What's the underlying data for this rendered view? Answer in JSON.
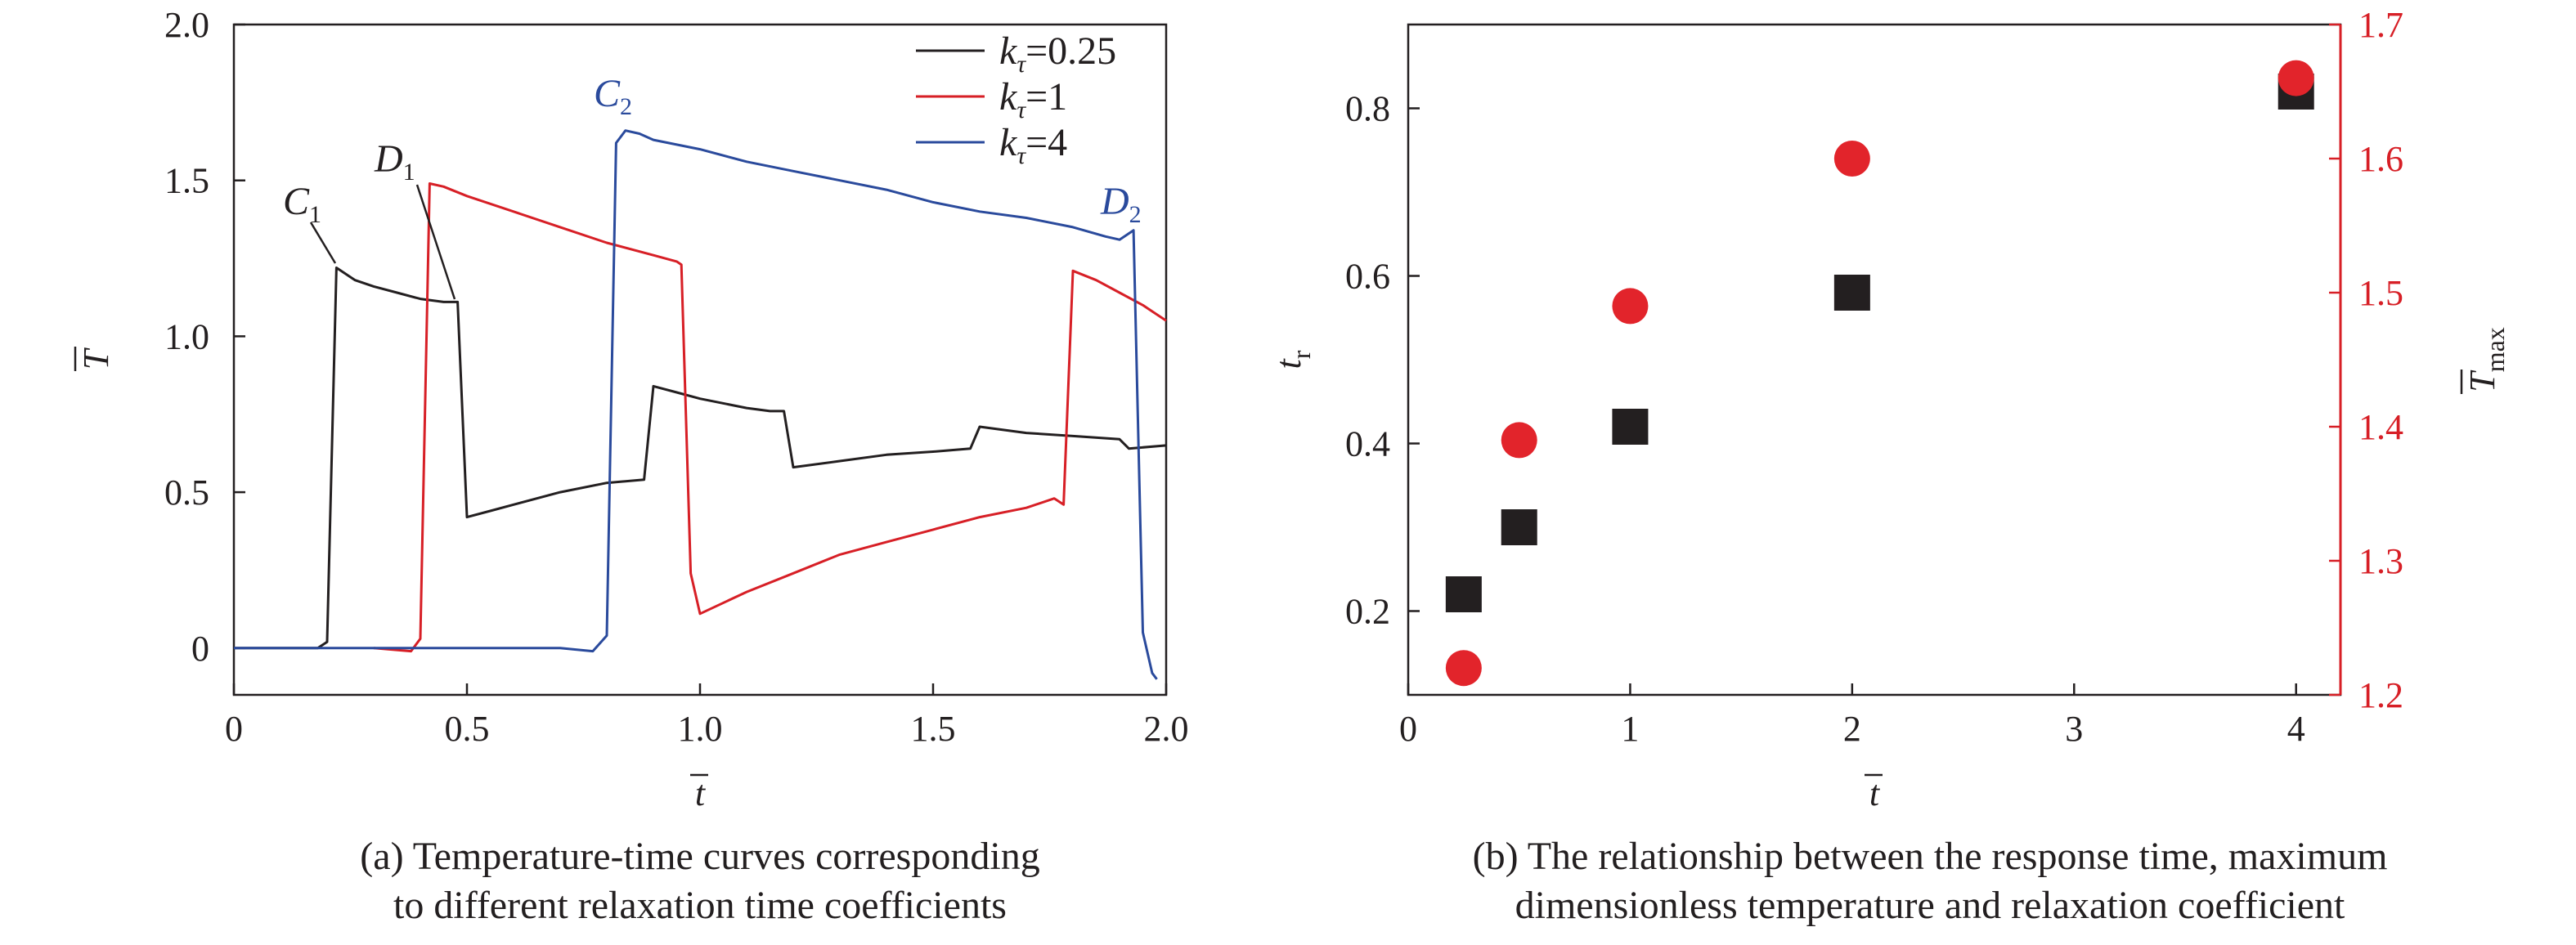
{
  "chart_data": [
    {
      "type": "line",
      "xlabel": "t̄",
      "ylabel": "T̄",
      "xlim": [
        0,
        2.0
      ],
      "ylim": [
        -0.15,
        2.0
      ],
      "xticks": [
        "0",
        "0.5",
        "1.0",
        "1.5",
        "2.0"
      ],
      "yticks": [
        "0",
        "0.5",
        "1.0",
        "1.5",
        "2.0"
      ],
      "legend": {
        "position": "top-right",
        "entries": [
          {
            "k": "k",
            "sub": "τ",
            "value": "=0.25",
            "color": "#231f20"
          },
          {
            "k": "k",
            "sub": "τ",
            "value": "=1",
            "color": "#d71f26"
          },
          {
            "k": "k",
            "sub": "τ",
            "value": "=4",
            "color": "#2a4a9c"
          }
        ]
      },
      "series": [
        {
          "name": "kτ=0.25",
          "color": "#231f20",
          "points": [
            [
              0,
              0
            ],
            [
              0.1,
              0
            ],
            [
              0.18,
              0
            ],
            [
              0.2,
              0.02
            ],
            [
              0.22,
              1.22
            ],
            [
              0.26,
              1.18
            ],
            [
              0.3,
              1.16
            ],
            [
              0.35,
              1.14
            ],
            [
              0.4,
              1.12
            ],
            [
              0.45,
              1.11
            ],
            [
              0.48,
              1.11
            ],
            [
              0.5,
              0.42
            ],
            [
              0.55,
              0.44
            ],
            [
              0.6,
              0.46
            ],
            [
              0.7,
              0.5
            ],
            [
              0.8,
              0.53
            ],
            [
              0.88,
              0.54
            ],
            [
              0.9,
              0.84
            ],
            [
              0.95,
              0.82
            ],
            [
              1.0,
              0.8
            ],
            [
              1.1,
              0.77
            ],
            [
              1.15,
              0.76
            ],
            [
              1.18,
              0.76
            ],
            [
              1.2,
              0.58
            ],
            [
              1.3,
              0.6
            ],
            [
              1.4,
              0.62
            ],
            [
              1.5,
              0.63
            ],
            [
              1.58,
              0.64
            ],
            [
              1.6,
              0.71
            ],
            [
              1.7,
              0.69
            ],
            [
              1.8,
              0.68
            ],
            [
              1.9,
              0.67
            ],
            [
              1.92,
              0.64
            ],
            [
              2.0,
              0.65
            ]
          ]
        },
        {
          "name": "kτ=1",
          "color": "#d71f26",
          "points": [
            [
              0.3,
              0
            ],
            [
              0.38,
              -0.01
            ],
            [
              0.4,
              0.03
            ],
            [
              0.42,
              1.49
            ],
            [
              0.45,
              1.48
            ],
            [
              0.5,
              1.45
            ],
            [
              0.6,
              1.4
            ],
            [
              0.7,
              1.35
            ],
            [
              0.8,
              1.3
            ],
            [
              0.9,
              1.26
            ],
            [
              0.95,
              1.24
            ],
            [
              0.96,
              1.23
            ],
            [
              0.98,
              0.24
            ],
            [
              1.0,
              0.11
            ],
            [
              1.1,
              0.18
            ],
            [
              1.2,
              0.24
            ],
            [
              1.3,
              0.3
            ],
            [
              1.4,
              0.34
            ],
            [
              1.5,
              0.38
            ],
            [
              1.6,
              0.42
            ],
            [
              1.7,
              0.45
            ],
            [
              1.76,
              0.48
            ],
            [
              1.78,
              0.46
            ],
            [
              1.8,
              1.21
            ],
            [
              1.85,
              1.18
            ],
            [
              1.9,
              1.14
            ],
            [
              1.95,
              1.1
            ],
            [
              2.0,
              1.05
            ]
          ]
        },
        {
          "name": "kτ=4",
          "color": "#2a4a9c",
          "points": [
            [
              0,
              0
            ],
            [
              0.2,
              0
            ],
            [
              0.4,
              0
            ],
            [
              0.5,
              0
            ],
            [
              0.6,
              0
            ],
            [
              0.7,
              0
            ],
            [
              0.77,
              -0.01
            ],
            [
              0.8,
              0.04
            ],
            [
              0.82,
              1.62
            ],
            [
              0.84,
              1.66
            ],
            [
              0.87,
              1.65
            ],
            [
              0.9,
              1.63
            ],
            [
              1.0,
              1.6
            ],
            [
              1.1,
              1.56
            ],
            [
              1.2,
              1.53
            ],
            [
              1.3,
              1.5
            ],
            [
              1.4,
              1.47
            ],
            [
              1.5,
              1.43
            ],
            [
              1.6,
              1.4
            ],
            [
              1.7,
              1.38
            ],
            [
              1.8,
              1.35
            ],
            [
              1.87,
              1.32
            ],
            [
              1.9,
              1.31
            ],
            [
              1.93,
              1.34
            ],
            [
              1.95,
              0.05
            ],
            [
              1.97,
              -0.08
            ],
            [
              1.98,
              -0.1
            ]
          ]
        }
      ],
      "annotations": [
        {
          "text": "C",
          "sub": "1",
          "color": "#231f20"
        },
        {
          "text": "D",
          "sub": "1",
          "color": "#231f20"
        },
        {
          "text": "C",
          "sub": "2",
          "color": "#2a4a9c"
        },
        {
          "text": "D",
          "sub": "2",
          "color": "#2a4a9c"
        }
      ],
      "caption_line1": "(a) Temperature-time curves corresponding",
      "caption_line2": "to different relaxation time coefficients"
    },
    {
      "type": "scatter",
      "xlabel": "t̄",
      "ylabel_left": "t",
      "ylabel_left_sub": "r",
      "ylabel_right": "T̄",
      "ylabel_right_sub": "max",
      "xlim": [
        0,
        4.2
      ],
      "ylim_left": [
        0.1,
        0.9
      ],
      "ylim_right": [
        1.2,
        1.7
      ],
      "xticks": [
        "0",
        "1",
        "2",
        "3",
        "4"
      ],
      "yticks_left": [
        "0.2",
        "0.4",
        "0.6",
        "0.8"
      ],
      "yticks_right": [
        "1.2",
        "1.3",
        "1.4",
        "1.5",
        "1.6",
        "1.7"
      ],
      "series": [
        {
          "axis": "left",
          "marker": "square",
          "color": "#231f20",
          "points": [
            [
              0.25,
              0.22
            ],
            [
              0.5,
              0.3
            ],
            [
              1,
              0.42
            ],
            [
              2,
              0.58
            ],
            [
              4,
              0.82
            ]
          ]
        },
        {
          "axis": "right",
          "marker": "circle",
          "color": "#e2242b",
          "points": [
            [
              0.25,
              1.22
            ],
            [
              0.5,
              1.39
            ],
            [
              1,
              1.49
            ],
            [
              2,
              1.6
            ],
            [
              4,
              1.66
            ]
          ]
        }
      ],
      "caption_line1": "(b) The relationship between the response time, maximum",
      "caption_line2": "dimensionless temperature and relaxation coefficient"
    }
  ]
}
